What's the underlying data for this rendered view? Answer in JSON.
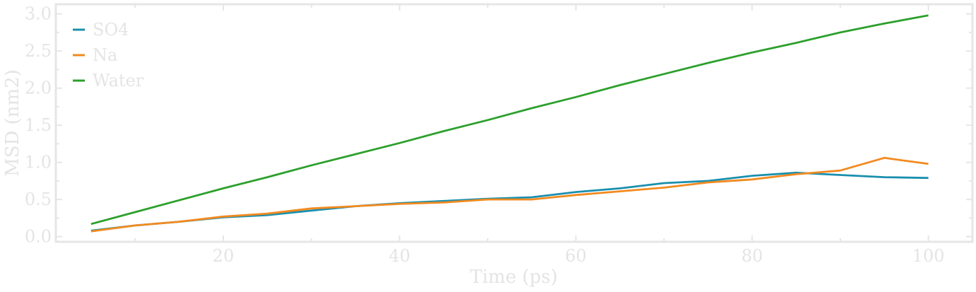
{
  "chart_data": {
    "type": "line",
    "title": "",
    "xlabel": "Time (ps)",
    "ylabel": "MSD (nm2)",
    "xlim": [
      1,
      105
    ],
    "ylim": [
      -0.07,
      3.13
    ],
    "xticks": [
      20,
      40,
      60,
      80,
      100
    ],
    "yticks": [
      0.0,
      0.5,
      1.0,
      1.5,
      2.0,
      2.5,
      3.0
    ],
    "xtick_labels": [
      "20",
      "40",
      "60",
      "80",
      "100"
    ],
    "ytick_labels": [
      "0.0",
      "0.5",
      "1.0",
      "1.5",
      "2.0",
      "2.5",
      "3.0"
    ],
    "grid": false,
    "legend_position": "top-left",
    "x": [
      5,
      10,
      15,
      20,
      25,
      30,
      35,
      40,
      45,
      50,
      55,
      60,
      65,
      70,
      75,
      80,
      85,
      90,
      95,
      100
    ],
    "series": [
      {
        "name": "SO4",
        "color": "#1a8fae",
        "values": [
          0.08,
          0.15,
          0.2,
          0.26,
          0.29,
          0.35,
          0.41,
          0.45,
          0.48,
          0.51,
          0.53,
          0.6,
          0.65,
          0.72,
          0.75,
          0.82,
          0.86,
          0.83,
          0.8,
          0.79
        ]
      },
      {
        "name": "Na",
        "color": "#f28a1f",
        "values": [
          0.07,
          0.15,
          0.2,
          0.27,
          0.31,
          0.38,
          0.41,
          0.44,
          0.46,
          0.5,
          0.5,
          0.56,
          0.61,
          0.66,
          0.73,
          0.77,
          0.84,
          0.89,
          1.06,
          0.98
        ]
      },
      {
        "name": "Water",
        "color": "#2ca02c",
        "values": [
          0.17,
          0.33,
          0.49,
          0.65,
          0.8,
          0.96,
          1.11,
          1.26,
          1.42,
          1.57,
          1.73,
          1.88,
          2.04,
          2.19,
          2.34,
          2.48,
          2.61,
          2.75,
          2.87,
          2.98
        ]
      }
    ]
  }
}
